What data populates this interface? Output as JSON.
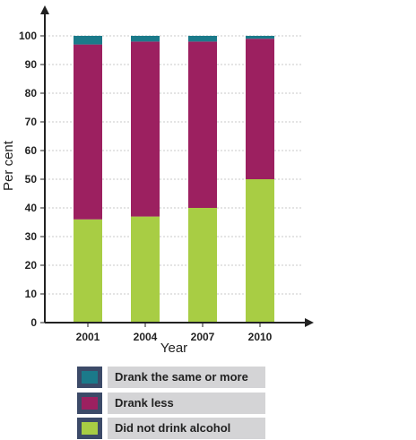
{
  "chart_data": {
    "type": "bar",
    "stacked": true,
    "categories": [
      "2001",
      "2004",
      "2007",
      "2010"
    ],
    "series": [
      {
        "name": "Did not drink alcohol",
        "color": "#a8cd44",
        "values": [
          36,
          37,
          40,
          50
        ]
      },
      {
        "name": "Drank less",
        "color": "#9c2060",
        "values": [
          61,
          61,
          58,
          49
        ]
      },
      {
        "name": "Drank the same or more",
        "color": "#1b7a8a",
        "values": [
          3,
          2,
          2,
          1
        ]
      }
    ],
    "xlabel": "Year",
    "ylabel": "Per cent",
    "ylim": [
      0,
      100
    ],
    "yticks": [
      0,
      10,
      20,
      30,
      40,
      50,
      60,
      70,
      80,
      90,
      100
    ],
    "grid": true,
    "legend_position": "bottom"
  },
  "legend": {
    "items": [
      {
        "label": "Drank the same or more",
        "color": "#1b7a8a"
      },
      {
        "label": "Drank less",
        "color": "#9c2060"
      },
      {
        "label": "Did not drink alcohol",
        "color": "#a8cd44"
      }
    ]
  }
}
